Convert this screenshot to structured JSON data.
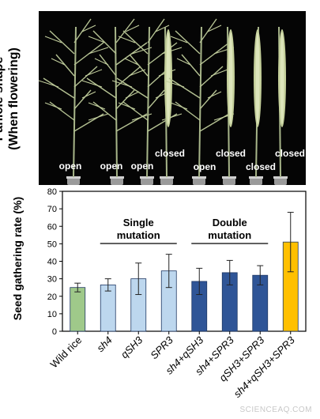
{
  "photo": {
    "side_title_line1": "Panicle shape",
    "side_title_line2": "(When flowering)",
    "plants": [
      {
        "shape": "open",
        "label": "open"
      },
      {
        "shape": "open",
        "label": "open"
      },
      {
        "shape": "open",
        "label": "open"
      },
      {
        "shape": "closed",
        "label": "closed"
      },
      {
        "shape": "open",
        "label": "open"
      },
      {
        "shape": "closed",
        "label": "closed"
      },
      {
        "shape": "closed",
        "label": "closed"
      },
      {
        "shape": "closed",
        "label": "closed"
      }
    ]
  },
  "chart_data": {
    "type": "bar",
    "ylabel": "Seed gathering rate (%)",
    "ylim": [
      0,
      80
    ],
    "yticks": [
      0,
      10,
      20,
      30,
      40,
      50,
      60,
      70,
      80
    ],
    "grid": false,
    "categories": [
      "Wild rice",
      "sh4",
      "qSH3",
      "SPR3",
      "sh4+qSH3",
      "sh4+SPR3",
      "qSH3+SPR3",
      "sh4+qSH3+SPR3"
    ],
    "values": [
      25,
      26.5,
      30,
      34.5,
      28.5,
      33.5,
      32,
      51
    ],
    "errors": [
      2.5,
      3.5,
      9,
      9.5,
      7.5,
      7,
      5.5,
      17
    ],
    "bar_colors": [
      "#9fc98a",
      "#bdd7ee",
      "#bdd7ee",
      "#bdd7ee",
      "#2f5597",
      "#2f5597",
      "#2f5597",
      "#ffc000"
    ],
    "groups": [
      {
        "label_line1": "Single",
        "label_line2": "mutation",
        "from": 1,
        "to": 3
      },
      {
        "label_line1": "Double",
        "label_line2": "mutation",
        "from": 4,
        "to": 6
      }
    ]
  },
  "watermark": "SCIENCEAQ.COM"
}
